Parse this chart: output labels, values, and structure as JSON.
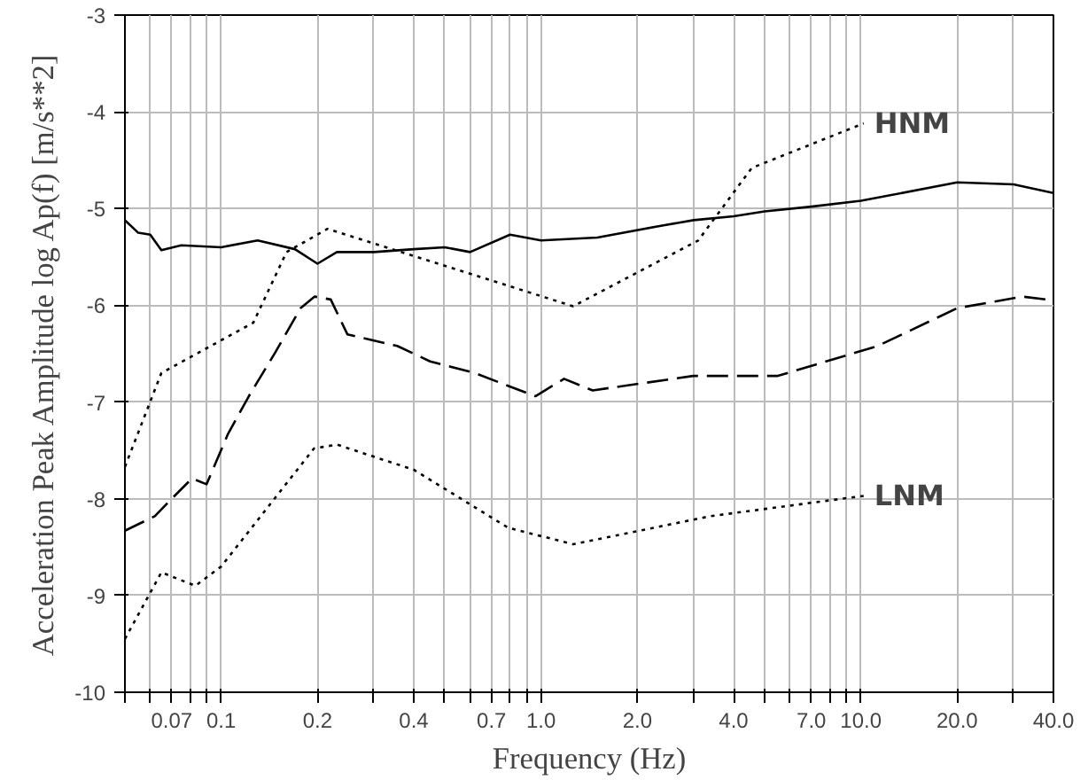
{
  "chart_data": {
    "type": "line",
    "xlabel": "Frequency (Hz)",
    "ylabel": "Acceleration Peak Amplitude log Ap(f) [m/s**2]",
    "log": "x",
    "grid": true,
    "legend": false,
    "xlim": [
      0.05,
      40
    ],
    "ylim": [
      -10,
      -3
    ],
    "yticks": [
      -10,
      -9,
      -8,
      -7,
      -6,
      -5,
      -4,
      -3
    ],
    "xticks": [
      {
        "value": 0.05,
        "label": null
      },
      {
        "value": 0.06,
        "label": null
      },
      0.07,
      {
        "value": 0.08,
        "label": null
      },
      {
        "value": 0.09,
        "label": null
      },
      0.1,
      0.2,
      {
        "value": 0.3,
        "label": null
      },
      0.4,
      {
        "value": 0.5,
        "label": null
      },
      {
        "value": 0.6,
        "label": null
      },
      0.7,
      {
        "value": 0.8,
        "label": null
      },
      {
        "value": 0.9,
        "label": null
      },
      {
        "value": 1,
        "label": "1.0"
      },
      {
        "value": 2,
        "label": "2.0"
      },
      {
        "value": 3,
        "label": null
      },
      {
        "value": 4,
        "label": "4.0"
      },
      {
        "value": 5,
        "label": null
      },
      {
        "value": 6,
        "label": null
      },
      {
        "value": 7,
        "label": "7.0"
      },
      {
        "value": 8,
        "label": null
      },
      {
        "value": 9,
        "label": null
      },
      {
        "value": 10,
        "label": "10.0"
      },
      {
        "value": 20,
        "label": "20.0"
      },
      {
        "value": 30,
        "label": null
      },
      {
        "value": 40,
        "label": "40.0"
      }
    ],
    "series": [
      {
        "color": "#000000",
        "line_style": "solid",
        "x": [
          0.05,
          0.055,
          0.06,
          0.065,
          0.075,
          0.1,
          0.13,
          0.17,
          0.2,
          0.23,
          0.3,
          0.4,
          0.5,
          0.6,
          0.8,
          1.0,
          1.5,
          2.35,
          3,
          4,
          5,
          7,
          10,
          20,
          30,
          40
        ],
        "values": [
          -5.12,
          -5.25,
          -5.27,
          -5.43,
          -5.38,
          -5.4,
          -5.33,
          -5.42,
          -5.57,
          -5.45,
          -5.45,
          -5.42,
          -5.4,
          -5.45,
          -5.27,
          -5.33,
          -5.3,
          -5.18,
          -5.12,
          -5.08,
          -5.03,
          -4.98,
          -4.92,
          -4.73,
          -4.75,
          -4.84
        ]
      },
      {
        "color": "#000000",
        "line_style": "dashed",
        "x": [
          0.05,
          0.062,
          0.07,
          0.081,
          0.09,
          0.105,
          0.122,
          0.148,
          0.177,
          0.196,
          0.22,
          0.248,
          0.355,
          0.45,
          0.62,
          0.96,
          1.18,
          1.45,
          2.99,
          5.5,
          11.3,
          20,
          32,
          40
        ],
        "values": [
          -8.33,
          -8.18,
          -8.0,
          -7.79,
          -7.85,
          -7.33,
          -6.94,
          -6.48,
          -6.03,
          -5.91,
          -5.94,
          -6.3,
          -6.42,
          -6.58,
          -6.7,
          -6.94,
          -6.76,
          -6.88,
          -6.73,
          -6.73,
          -6.42,
          -6.03,
          -5.91,
          -5.95
        ]
      },
      {
        "name": "HNM",
        "color": "#000000",
        "line_style": "dotted",
        "x": [
          0.05,
          0.065,
          0.126,
          0.16,
          0.215,
          1.26,
          3.1,
          4.56,
          10.2
        ],
        "values": [
          -7.67,
          -6.7,
          -6.18,
          -5.45,
          -5.21,
          -6.01,
          -5.33,
          -4.58,
          -4.12
        ]
      },
      {
        "name": "LNM",
        "color": "#000000",
        "line_style": "dotted",
        "x": [
          0.05,
          0.065,
          0.083,
          0.1,
          0.195,
          0.23,
          0.4,
          0.79,
          1.26,
          3.38,
          10.2
        ],
        "values": [
          -9.45,
          -8.76,
          -8.9,
          -8.7,
          -7.48,
          -7.44,
          -7.7,
          -8.3,
          -8.47,
          -8.18,
          -7.97
        ]
      }
    ]
  }
}
